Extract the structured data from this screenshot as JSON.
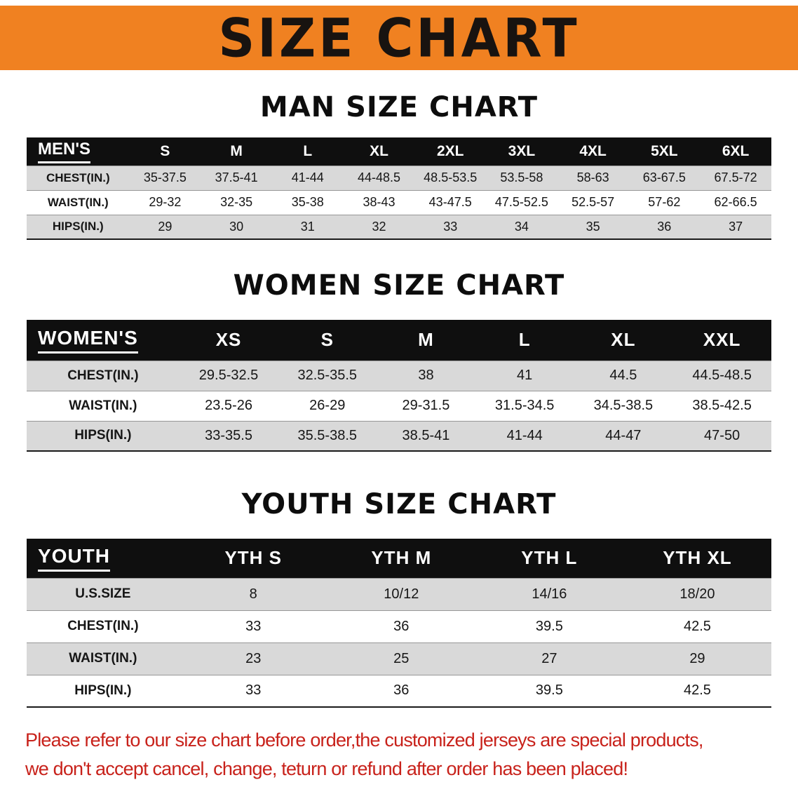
{
  "banner": {
    "title": "SIZE CHART"
  },
  "tables": [
    {
      "id": "men",
      "title": "MAN SIZE CHART",
      "header": [
        "MEN'S",
        "S",
        "M",
        "L",
        "XL",
        "2XL",
        "3XL",
        "4XL",
        "5XL",
        "6XL"
      ],
      "rows": [
        [
          "CHEST(IN.)",
          "35-37.5",
          "37.5-41",
          "41-44",
          "44-48.5",
          "48.5-53.5",
          "53.5-58",
          "58-63",
          "63-67.5",
          "67.5-72"
        ],
        [
          "WAIST(IN.)",
          "29-32",
          "32-35",
          "35-38",
          "38-43",
          "43-47.5",
          "47.5-52.5",
          "52.5-57",
          "57-62",
          "62-66.5"
        ],
        [
          "HIPS(IN.)",
          "29",
          "30",
          "31",
          "32",
          "33",
          "34",
          "35",
          "36",
          "37"
        ]
      ]
    },
    {
      "id": "women",
      "title": "WOMEN SIZE CHART",
      "header": [
        "WOMEN'S",
        "XS",
        "S",
        "M",
        "L",
        "XL",
        "XXL"
      ],
      "rows": [
        [
          "CHEST(IN.)",
          "29.5-32.5",
          "32.5-35.5",
          "38",
          "41",
          "44.5",
          "44.5-48.5"
        ],
        [
          "WAIST(IN.)",
          "23.5-26",
          "26-29",
          "29-31.5",
          "31.5-34.5",
          "34.5-38.5",
          "38.5-42.5"
        ],
        [
          "HIPS(IN.)",
          "33-35.5",
          "35.5-38.5",
          "38.5-41",
          "41-44",
          "44-47",
          "47-50"
        ]
      ]
    },
    {
      "id": "youth",
      "title": "YOUTH SIZE CHART",
      "header": [
        "YOUTH",
        "YTH S",
        "YTH M",
        "YTH L",
        "YTH XL"
      ],
      "rows": [
        [
          "U.S.SIZE",
          "8",
          "10/12",
          "14/16",
          "18/20"
        ],
        [
          "CHEST(IN.)",
          "33",
          "36",
          "39.5",
          "42.5"
        ],
        [
          "WAIST(IN.)",
          "23",
          "25",
          "27",
          "29"
        ],
        [
          "HIPS(IN.)",
          "33",
          "36",
          "39.5",
          "42.5"
        ]
      ]
    }
  ],
  "footer": {
    "line1": "Please refer to our size chart before order,the customized jerseys are special products,",
    "line2": "we don't accept cancel, change, teturn or refund after order has been placed!"
  },
  "colors": {
    "banner_bg": "#f08121",
    "header_bg": "#0f0f0f",
    "row_alt_bg": "#d9d9d9",
    "footer_text": "#c8221b"
  }
}
